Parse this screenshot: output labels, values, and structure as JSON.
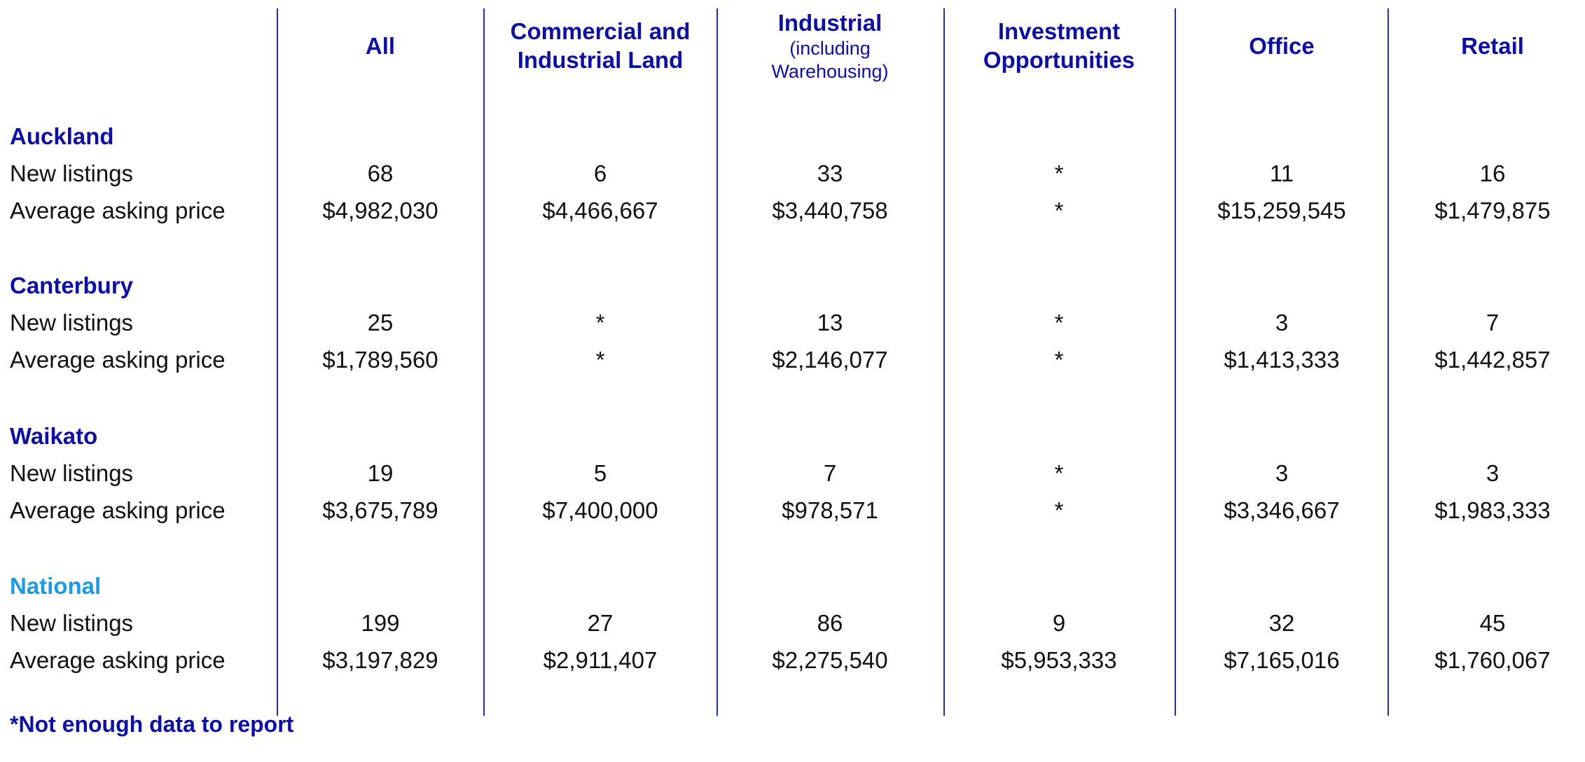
{
  "colors": {
    "accent": "#0d0fa0",
    "national": "#1a9be8",
    "text": "#111111",
    "divider": "#2530a8"
  },
  "chart_data": {
    "type": "table",
    "columns": [
      {
        "title": "All",
        "subtitle": ""
      },
      {
        "title": "Commercial and Industrial Land",
        "subtitle": ""
      },
      {
        "title": "Industrial",
        "subtitle": "(including Warehousing)"
      },
      {
        "title": "Investment Opportunities",
        "subtitle": ""
      },
      {
        "title": "Office",
        "subtitle": ""
      },
      {
        "title": "Retail",
        "subtitle": ""
      }
    ],
    "regions": [
      {
        "name": "Auckland",
        "new_listings_label": "New listings",
        "new_listings": [
          "68",
          "6",
          "33",
          "*",
          "11",
          "16"
        ],
        "avg_price_label": "Average asking price",
        "avg_price": [
          "$4,982,030",
          "$4,466,667",
          "$3,440,758",
          "*",
          "$15,259,545",
          "$1,479,875"
        ]
      },
      {
        "name": "Canterbury",
        "new_listings_label": "New listings",
        "new_listings": [
          "25",
          "*",
          "13",
          "*",
          "3",
          "7"
        ],
        "avg_price_label": "Average asking price",
        "avg_price": [
          "$1,789,560",
          "*",
          "$2,146,077",
          "*",
          "$1,413,333",
          "$1,442,857"
        ]
      },
      {
        "name": "Waikato",
        "new_listings_label": "New listings",
        "new_listings": [
          "19",
          "5",
          "7",
          "*",
          "3",
          "3"
        ],
        "avg_price_label": "Average asking price",
        "avg_price": [
          "$3,675,789",
          "$7,400,000",
          "$978,571",
          "*",
          "$3,346,667",
          "$1,983,333"
        ]
      },
      {
        "name": "National",
        "new_listings_label": "New listings",
        "new_listings": [
          "199",
          "27",
          "86",
          "9",
          "32",
          "45"
        ],
        "avg_price_label": "Average asking price",
        "avg_price": [
          "$3,197,829",
          "$2,911,407",
          "$2,275,540",
          "$5,953,333",
          "$7,165,016",
          "$1,760,067"
        ]
      }
    ],
    "footnote": "*Not enough data to report"
  }
}
